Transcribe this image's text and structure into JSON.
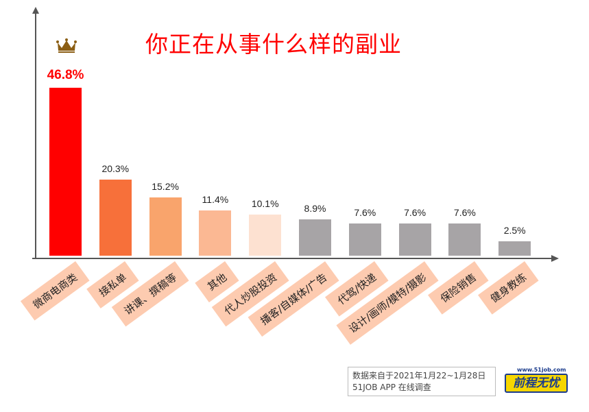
{
  "chart_data": {
    "type": "bar",
    "title": "你正在从事什么样的副业",
    "categories": [
      "微商电商类",
      "接私单",
      "讲课、撰稿等",
      "其他",
      "代人炒股投资",
      "播客/自媒体/广告",
      "代驾/快递",
      "设计/画师/模特/摄影",
      "保险销售",
      "健身教练"
    ],
    "values": [
      46.8,
      20.3,
      15.2,
      11.4,
      10.1,
      8.9,
      7.6,
      7.6,
      7.6,
      2.5
    ],
    "value_labels": [
      "46.8%",
      "20.3%",
      "15.2%",
      "11.4%",
      "10.1%",
      "8.9%",
      "7.6%",
      "7.6%",
      "7.6%",
      "2.5%"
    ],
    "colors": [
      "#ff0000",
      "#f7703a",
      "#f9a46c",
      "#fbb893",
      "#fde1d1",
      "#a7a4a6",
      "#a7a4a6",
      "#a7a4a6",
      "#a7a4a6",
      "#a7a4a6"
    ],
    "label_bg": "#fdcbb0",
    "highlight_icon": "crown-icon",
    "xlabel": "",
    "ylabel": "",
    "grid": false
  },
  "footer": {
    "line1": "数据来自于2021年1月22~1月28日",
    "line2": "51JOB APP 在线调查"
  },
  "logo": {
    "url": "www.51job.com",
    "name": "前程无忧"
  }
}
